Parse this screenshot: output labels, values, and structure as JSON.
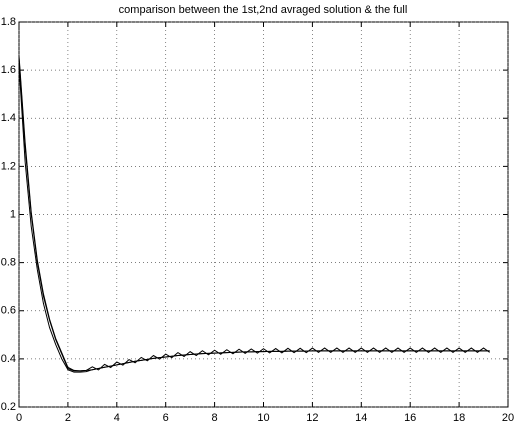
{
  "chart_data": {
    "type": "line",
    "title": "comparison between the 1st,2nd avraged solution & the full",
    "x": [
      0,
      0.25,
      0.5,
      0.75,
      1,
      1.25,
      1.5,
      1.75,
      2,
      2.25,
      2.5,
      2.75,
      3,
      3.25,
      3.5,
      3.75,
      4,
      4.25,
      4.5,
      4.75,
      5,
      5.25,
      5.5,
      5.75,
      6,
      6.25,
      6.5,
      6.75,
      7,
      7.25,
      7.5,
      7.75,
      8,
      8.25,
      8.5,
      8.75,
      9,
      9.25,
      9.5,
      9.75,
      10,
      10.25,
      10.5,
      10.75,
      11,
      11.25,
      11.5,
      11.75,
      12,
      12.25,
      12.5,
      12.75,
      13,
      13.25,
      13.5,
      13.75,
      14,
      14.25,
      14.5,
      14.75,
      15,
      15.25,
      15.5,
      15.75,
      16,
      16.25,
      16.5,
      16.75,
      17,
      17.25,
      17.5,
      17.75,
      18,
      18.25,
      18.5,
      18.75,
      19,
      19.25
    ],
    "series": [
      {
        "color": "#000000",
        "values": [
          1.65,
          1.28,
          1.0,
          0.8,
          0.66,
          0.56,
          0.48,
          0.42,
          0.36,
          0.35,
          0.35,
          0.352,
          0.355,
          0.36,
          0.365,
          0.37,
          0.375,
          0.38,
          0.385,
          0.39,
          0.394,
          0.398,
          0.402,
          0.405,
          0.408,
          0.411,
          0.414,
          0.416,
          0.418,
          0.42,
          0.422,
          0.423,
          0.424,
          0.425,
          0.426,
          0.427,
          0.428,
          0.429,
          0.429,
          0.43,
          0.43,
          0.431,
          0.431,
          0.431,
          0.432,
          0.432,
          0.432,
          0.432,
          0.433,
          0.433,
          0.433,
          0.433,
          0.433,
          0.433,
          0.433,
          0.433,
          0.433,
          0.433,
          0.433,
          0.433,
          0.433,
          0.433,
          0.433,
          0.433,
          0.433,
          0.433,
          0.433,
          0.433,
          0.433,
          0.433,
          0.433,
          0.433,
          0.433,
          0.433,
          0.433,
          0.433,
          0.433,
          0.433
        ]
      },
      {
        "color": "#000000",
        "values": [
          1.62,
          1.22,
          0.95,
          0.77,
          0.63,
          0.53,
          0.46,
          0.4,
          0.355,
          0.345,
          0.345,
          0.347,
          0.355,
          0.36,
          0.365,
          0.37,
          0.375,
          0.38,
          0.385,
          0.39,
          0.394,
          0.398,
          0.402,
          0.405,
          0.408,
          0.411,
          0.414,
          0.416,
          0.418,
          0.42,
          0.422,
          0.423,
          0.424,
          0.425,
          0.426,
          0.427,
          0.428,
          0.429,
          0.429,
          0.43,
          0.43,
          0.431,
          0.431,
          0.431,
          0.432,
          0.432,
          0.432,
          0.432,
          0.433,
          0.433,
          0.433,
          0.433,
          0.433,
          0.433,
          0.433,
          0.433,
          0.433,
          0.433,
          0.433,
          0.433,
          0.433,
          0.433,
          0.433,
          0.433,
          0.433,
          0.433,
          0.433,
          0.433,
          0.433,
          0.433,
          0.433,
          0.433,
          0.433,
          0.433,
          0.433,
          0.433,
          0.433,
          0.433
        ]
      },
      {
        "color": "#000000",
        "values": [
          1.66,
          1.3,
          1.01,
          0.81,
          0.67,
          0.565,
          0.485,
          0.425,
          0.365,
          0.352,
          0.35,
          0.352,
          0.367,
          0.354,
          0.377,
          0.364,
          0.387,
          0.374,
          0.397,
          0.384,
          0.406,
          0.392,
          0.414,
          0.399,
          0.42,
          0.405,
          0.426,
          0.41,
          0.43,
          0.414,
          0.434,
          0.417,
          0.436,
          0.419,
          0.438,
          0.421,
          0.44,
          0.423,
          0.441,
          0.424,
          0.442,
          0.425,
          0.443,
          0.425,
          0.444,
          0.426,
          0.444,
          0.426,
          0.445,
          0.427,
          0.445,
          0.427,
          0.445,
          0.427,
          0.445,
          0.427,
          0.445,
          0.427,
          0.445,
          0.427,
          0.445,
          0.427,
          0.445,
          0.427,
          0.445,
          0.427,
          0.445,
          0.427,
          0.445,
          0.427,
          0.445,
          0.427,
          0.445,
          0.427,
          0.445,
          0.427,
          0.445,
          0.427
        ]
      }
    ],
    "xlim": [
      0,
      20
    ],
    "xticks": [
      0,
      2,
      4,
      6,
      8,
      10,
      12,
      14,
      16,
      18,
      20
    ],
    "ylim": [
      0.2,
      1.8
    ],
    "yticks": [
      0.2,
      0.4,
      0.6,
      0.8,
      1,
      1.2,
      1.4,
      1.6,
      1.8
    ],
    "grid": true
  }
}
